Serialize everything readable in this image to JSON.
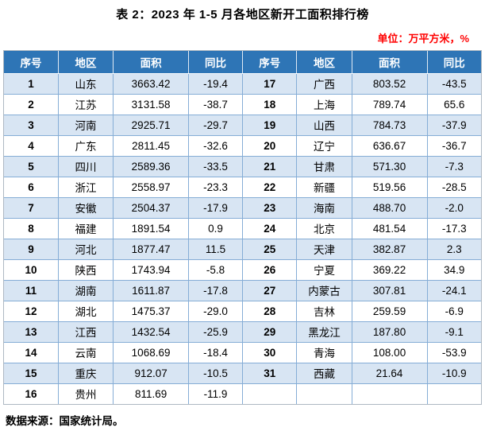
{
  "title": "表 2：2023 年 1-5 月各地区新开工面积排行榜",
  "unit_label": "单位：万平方米，%",
  "source": "数据来源：国家统计局。",
  "colors": {
    "header_bg": "#2E75B6",
    "header_text": "#FFFFFF",
    "row_alt_bg": "#D8E5F3",
    "row_bg": "#FFFFFF",
    "grid_border": "#85ADD6",
    "outer_border": "#AEB8C2",
    "unit_text": "#FF0000",
    "title_text": "#000000"
  },
  "table": {
    "header": [
      "序号",
      "地区",
      "面积",
      "同比",
      "序号",
      "地区",
      "面积",
      "同比"
    ],
    "rows": [
      [
        "1",
        "山东",
        "3663.42",
        "-19.4",
        "17",
        "广西",
        "803.52",
        "-43.5"
      ],
      [
        "2",
        "江苏",
        "3131.58",
        "-38.7",
        "18",
        "上海",
        "789.74",
        "65.6"
      ],
      [
        "3",
        "河南",
        "2925.71",
        "-29.7",
        "19",
        "山西",
        "784.73",
        "-37.9"
      ],
      [
        "4",
        "广东",
        "2811.45",
        "-32.6",
        "20",
        "辽宁",
        "636.67",
        "-36.7"
      ],
      [
        "5",
        "四川",
        "2589.36",
        "-33.5",
        "21",
        "甘肃",
        "571.30",
        "-7.3"
      ],
      [
        "6",
        "浙江",
        "2558.97",
        "-23.3",
        "22",
        "新疆",
        "519.56",
        "-28.5"
      ],
      [
        "7",
        "安徽",
        "2504.37",
        "-17.9",
        "23",
        "海南",
        "488.70",
        "-2.0"
      ],
      [
        "8",
        "福建",
        "1891.54",
        "0.9",
        "24",
        "北京",
        "481.54",
        "-17.3"
      ],
      [
        "9",
        "河北",
        "1877.47",
        "11.5",
        "25",
        "天津",
        "382.87",
        "2.3"
      ],
      [
        "10",
        "陕西",
        "1743.94",
        "-5.8",
        "26",
        "宁夏",
        "369.22",
        "34.9"
      ],
      [
        "11",
        "湖南",
        "1611.87",
        "-17.8",
        "27",
        "内蒙古",
        "307.81",
        "-24.1"
      ],
      [
        "12",
        "湖北",
        "1475.37",
        "-29.0",
        "28",
        "吉林",
        "259.59",
        "-6.9"
      ],
      [
        "13",
        "江西",
        "1432.54",
        "-25.9",
        "29",
        "黑龙江",
        "187.80",
        "-9.1"
      ],
      [
        "14",
        "云南",
        "1068.69",
        "-18.4",
        "30",
        "青海",
        "108.00",
        "-53.9"
      ],
      [
        "15",
        "重庆",
        "912.07",
        "-10.5",
        "31",
        "西藏",
        "21.64",
        "-10.9"
      ],
      [
        "16",
        "贵州",
        "811.69",
        "-11.9",
        "",
        "",
        "",
        ""
      ]
    ]
  }
}
